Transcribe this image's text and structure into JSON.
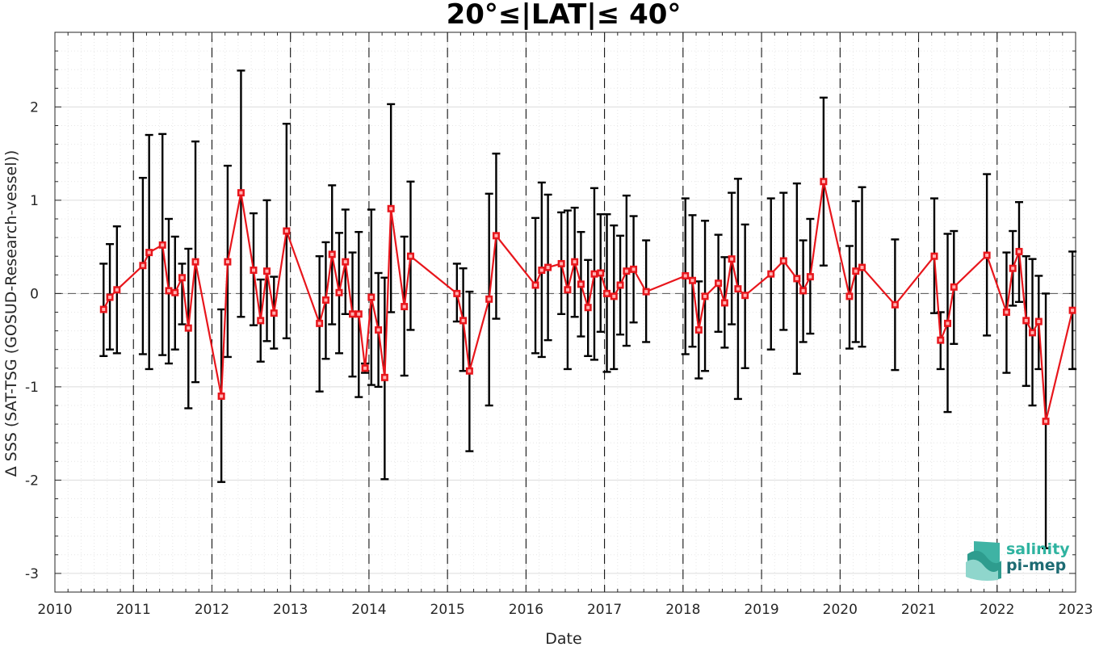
{
  "chart_data": {
    "type": "line",
    "title": "20°≤|LAT|≤ 40°",
    "xlabel": "Date",
    "ylabel": "Δ SSS (SAT-TSG (GOSUD-Research-vessel))",
    "xlim": [
      2010,
      2023
    ],
    "ylim": [
      -3.2,
      2.8
    ],
    "xticks": [
      "2010",
      "2011",
      "2012",
      "2013",
      "2014",
      "2015",
      "2016",
      "2017",
      "2018",
      "2019",
      "2020",
      "2021",
      "2022",
      "2023"
    ],
    "yticks": [
      "-3",
      "-2",
      "-1",
      "0",
      "1",
      "2"
    ],
    "grid": true,
    "colors": {
      "line": "#e8161c",
      "errorbar": "#000000",
      "zero_line": "#555555"
    },
    "series": [
      {
        "points": [
          {
            "x": 2010.62,
            "y": -0.17,
            "lo": -0.67,
            "hi": 0.32
          },
          {
            "x": 2010.7,
            "y": -0.04,
            "lo": -0.6,
            "hi": 0.53
          },
          {
            "x": 2010.79,
            "y": 0.04,
            "lo": -0.64,
            "hi": 0.72
          },
          {
            "x": 2011.12,
            "y": 0.3,
            "lo": -0.65,
            "hi": 1.24
          },
          {
            "x": 2011.2,
            "y": 0.44,
            "lo": -0.81,
            "hi": 1.7
          },
          {
            "x": 2011.37,
            "y": 0.52,
            "lo": -0.66,
            "hi": 1.71
          },
          {
            "x": 2011.45,
            "y": 0.03,
            "lo": -0.75,
            "hi": 0.8
          },
          {
            "x": 2011.53,
            "y": 0.01,
            "lo": -0.6,
            "hi": 0.61
          },
          {
            "x": 2011.62,
            "y": 0.17,
            "lo": -0.33,
            "hi": 0.32
          },
          {
            "x": 2011.7,
            "y": -0.37,
            "lo": -1.23,
            "hi": 0.48
          },
          {
            "x": 2011.79,
            "y": 0.34,
            "lo": -0.95,
            "hi": 1.63
          },
          {
            "x": 2012.12,
            "y": -1.1,
            "lo": -2.02,
            "hi": -0.17
          },
          {
            "x": 2012.2,
            "y": 0.34,
            "lo": -0.68,
            "hi": 1.37
          },
          {
            "x": 2012.37,
            "y": 1.08,
            "lo": -0.25,
            "hi": 2.39
          },
          {
            "x": 2012.53,
            "y": 0.25,
            "lo": -0.34,
            "hi": 0.86
          },
          {
            "x": 2012.62,
            "y": -0.29,
            "lo": -0.73,
            "hi": 0.15
          },
          {
            "x": 2012.7,
            "y": 0.24,
            "lo": -0.51,
            "hi": 1.0
          },
          {
            "x": 2012.79,
            "y": -0.21,
            "lo": -0.59,
            "hi": 0.18
          },
          {
            "x": 2012.95,
            "y": 0.67,
            "lo": -0.48,
            "hi": 1.82
          },
          {
            "x": 2013.37,
            "y": -0.32,
            "lo": -1.05,
            "hi": 0.4
          },
          {
            "x": 2013.45,
            "y": -0.07,
            "lo": -0.7,
            "hi": 0.55
          },
          {
            "x": 2013.53,
            "y": 0.42,
            "lo": -0.33,
            "hi": 1.16
          },
          {
            "x": 2013.62,
            "y": 0.01,
            "lo": -0.64,
            "hi": 0.65
          },
          {
            "x": 2013.7,
            "y": 0.34,
            "lo": -0.22,
            "hi": 0.9
          },
          {
            "x": 2013.79,
            "y": -0.22,
            "lo": -0.89,
            "hi": 0.44
          },
          {
            "x": 2013.87,
            "y": -0.22,
            "lo": -1.11,
            "hi": 0.66
          },
          {
            "x": 2013.95,
            "y": -0.8,
            "lo": -0.85,
            "hi": -0.75
          },
          {
            "x": 2014.03,
            "y": -0.04,
            "lo": -0.98,
            "hi": 0.9
          },
          {
            "x": 2014.12,
            "y": -0.39,
            "lo": -1.0,
            "hi": 0.22
          },
          {
            "x": 2014.2,
            "y": -0.9,
            "lo": -1.99,
            "hi": 0.17
          },
          {
            "x": 2014.28,
            "y": 0.91,
            "lo": -0.2,
            "hi": 2.03
          },
          {
            "x": 2014.45,
            "y": -0.14,
            "lo": -0.88,
            "hi": 0.61
          },
          {
            "x": 2014.53,
            "y": 0.4,
            "lo": -0.39,
            "hi": 1.2
          },
          {
            "x": 2015.12,
            "y": 0.0,
            "lo": -0.3,
            "hi": 0.32
          },
          {
            "x": 2015.2,
            "y": -0.29,
            "lo": -0.83,
            "hi": 0.27
          },
          {
            "x": 2015.28,
            "y": -0.83,
            "lo": -1.69,
            "hi": 0.02
          },
          {
            "x": 2015.53,
            "y": -0.06,
            "lo": -1.2,
            "hi": 1.07
          },
          {
            "x": 2015.62,
            "y": 0.62,
            "lo": -0.27,
            "hi": 1.5
          },
          {
            "x": 2016.12,
            "y": 0.09,
            "lo": -0.64,
            "hi": 0.81
          },
          {
            "x": 2016.2,
            "y": 0.25,
            "lo": -0.68,
            "hi": 1.19
          },
          {
            "x": 2016.28,
            "y": 0.28,
            "lo": -0.5,
            "hi": 1.06
          },
          {
            "x": 2016.45,
            "y": 0.32,
            "lo": -0.22,
            "hi": 0.87
          },
          {
            "x": 2016.53,
            "y": 0.04,
            "lo": -0.81,
            "hi": 0.89
          },
          {
            "x": 2016.62,
            "y": 0.34,
            "lo": -0.25,
            "hi": 0.92
          },
          {
            "x": 2016.7,
            "y": 0.1,
            "lo": -0.46,
            "hi": 0.66
          },
          {
            "x": 2016.79,
            "y": -0.15,
            "lo": -0.67,
            "hi": 0.36
          },
          {
            "x": 2016.87,
            "y": 0.21,
            "lo": -0.71,
            "hi": 1.13
          },
          {
            "x": 2016.95,
            "y": 0.22,
            "lo": -0.41,
            "hi": 0.85
          },
          {
            "x": 2017.03,
            "y": 0.0,
            "lo": -0.84,
            "hi": 0.85
          },
          {
            "x": 2017.12,
            "y": -0.03,
            "lo": -0.81,
            "hi": 0.73
          },
          {
            "x": 2017.2,
            "y": 0.09,
            "lo": -0.44,
            "hi": 0.62
          },
          {
            "x": 2017.28,
            "y": 0.24,
            "lo": -0.56,
            "hi": 1.05
          },
          {
            "x": 2017.37,
            "y": 0.26,
            "lo": -0.31,
            "hi": 0.83
          },
          {
            "x": 2017.53,
            "y": 0.02,
            "lo": -0.52,
            "hi": 0.57
          },
          {
            "x": 2018.03,
            "y": 0.19,
            "lo": -0.65,
            "hi": 1.02
          },
          {
            "x": 2018.12,
            "y": 0.14,
            "lo": -0.57,
            "hi": 0.84
          },
          {
            "x": 2018.2,
            "y": -0.39,
            "lo": -0.91,
            "hi": 0.13
          },
          {
            "x": 2018.28,
            "y": -0.03,
            "lo": -0.83,
            "hi": 0.78
          },
          {
            "x": 2018.45,
            "y": 0.11,
            "lo": -0.41,
            "hi": 0.63
          },
          {
            "x": 2018.53,
            "y": -0.1,
            "lo": -0.58,
            "hi": 0.39
          },
          {
            "x": 2018.62,
            "y": 0.37,
            "lo": -0.33,
            "hi": 1.08
          },
          {
            "x": 2018.7,
            "y": 0.05,
            "lo": -1.13,
            "hi": 1.23
          },
          {
            "x": 2018.79,
            "y": -0.02,
            "lo": -0.8,
            "hi": 0.74
          },
          {
            "x": 2019.12,
            "y": 0.21,
            "lo": -0.6,
            "hi": 1.02
          },
          {
            "x": 2019.28,
            "y": 0.35,
            "lo": -0.39,
            "hi": 1.08
          },
          {
            "x": 2019.45,
            "y": 0.16,
            "lo": -0.86,
            "hi": 1.18
          },
          {
            "x": 2019.53,
            "y": 0.03,
            "lo": -0.52,
            "hi": 0.57
          },
          {
            "x": 2019.62,
            "y": 0.18,
            "lo": -0.43,
            "hi": 0.8
          },
          {
            "x": 2019.79,
            "y": 1.2,
            "lo": 0.3,
            "hi": 2.1
          },
          {
            "x": 2020.12,
            "y": -0.03,
            "lo": -0.59,
            "hi": 0.51
          },
          {
            "x": 2020.2,
            "y": 0.24,
            "lo": -0.52,
            "hi": 0.99
          },
          {
            "x": 2020.28,
            "y": 0.28,
            "lo": -0.57,
            "hi": 1.14
          },
          {
            "x": 2020.7,
            "y": -0.12,
            "lo": -0.82,
            "hi": 0.58
          },
          {
            "x": 2021.2,
            "y": 0.4,
            "lo": -0.21,
            "hi": 1.02
          },
          {
            "x": 2021.28,
            "y": -0.5,
            "lo": -0.81,
            "hi": -0.2
          },
          {
            "x": 2021.37,
            "y": -0.32,
            "lo": -1.27,
            "hi": 0.64
          },
          {
            "x": 2021.45,
            "y": 0.07,
            "lo": -0.54,
            "hi": 0.67
          },
          {
            "x": 2021.87,
            "y": 0.41,
            "lo": -0.45,
            "hi": 1.28
          },
          {
            "x": 2022.12,
            "y": -0.2,
            "lo": -0.85,
            "hi": 0.44
          },
          {
            "x": 2022.2,
            "y": 0.27,
            "lo": -0.13,
            "hi": 0.67
          },
          {
            "x": 2022.28,
            "y": 0.45,
            "lo": -0.09,
            "hi": 0.98
          },
          {
            "x": 2022.37,
            "y": -0.29,
            "lo": -0.99,
            "hi": 0.4
          },
          {
            "x": 2022.45,
            "y": -0.42,
            "lo": -1.2,
            "hi": 0.37
          },
          {
            "x": 2022.53,
            "y": -0.3,
            "lo": -0.81,
            "hi": 0.19
          },
          {
            "x": 2022.62,
            "y": -1.37,
            "lo": -2.73,
            "hi": 0.0
          },
          {
            "x": 2022.96,
            "y": -0.18,
            "lo": -0.81,
            "hi": 0.45
          }
        ]
      }
    ]
  },
  "logo": {
    "line1": "salinity",
    "line2": "pi-mep"
  }
}
